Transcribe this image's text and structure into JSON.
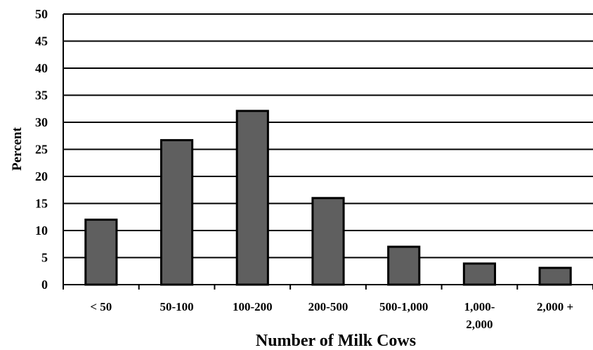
{
  "chart_data": {
    "type": "bar",
    "categories": [
      [
        "< 50"
      ],
      [
        "50-100"
      ],
      [
        "100-200"
      ],
      [
        "200-500"
      ],
      [
        "500-1,000"
      ],
      [
        "1,000-",
        "2,000"
      ],
      [
        "2,000 +"
      ]
    ],
    "values": [
      12,
      26.7,
      32.1,
      16,
      7,
      3.9,
      3.1
    ],
    "ylim": [
      0,
      50
    ],
    "yticks": [
      0,
      5,
      10,
      15,
      20,
      25,
      30,
      35,
      40,
      45,
      50
    ],
    "xlabel": "Number of Milk Cows",
    "ylabel": "Percent",
    "grid": true,
    "colors": {
      "bar": "#5f5f5f",
      "bar_edge": "#000000",
      "grid": "#000000"
    }
  }
}
